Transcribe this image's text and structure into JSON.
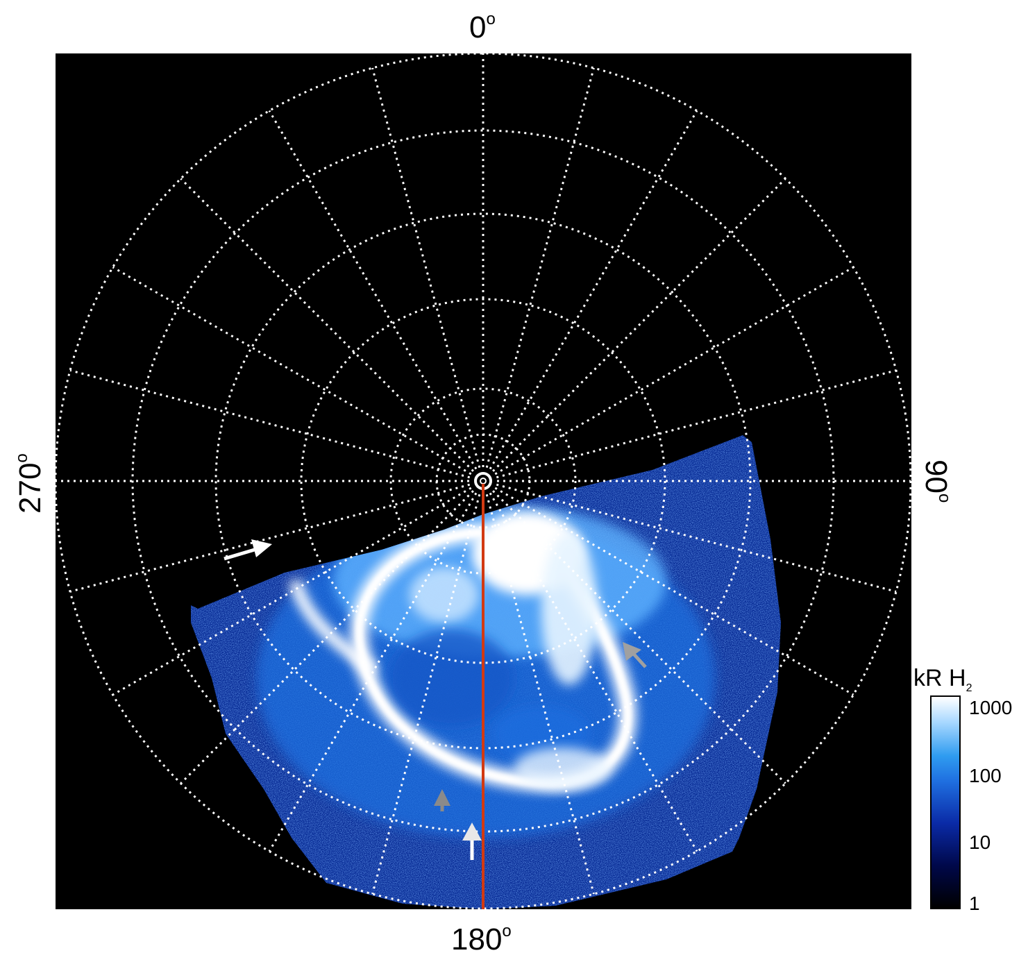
{
  "axis_labels": {
    "top": "0",
    "bottom": "180",
    "left": "270",
    "right": "90",
    "degree": "o"
  },
  "colorbar": {
    "title": "kR H",
    "title_sub": "2",
    "ticks": [
      "1000",
      "100",
      "10",
      "1"
    ],
    "scale": "log"
  },
  "colors": {
    "background": "#000000",
    "grid": "#ffffff",
    "meridian": "#d23a12",
    "aurora_bright": "#ffffff",
    "aurora_mid": "#2f8ff0",
    "aurora_dim": "#06206e",
    "arrow_white": "#ffffff",
    "arrow_gray": "#a0a0a0"
  }
}
